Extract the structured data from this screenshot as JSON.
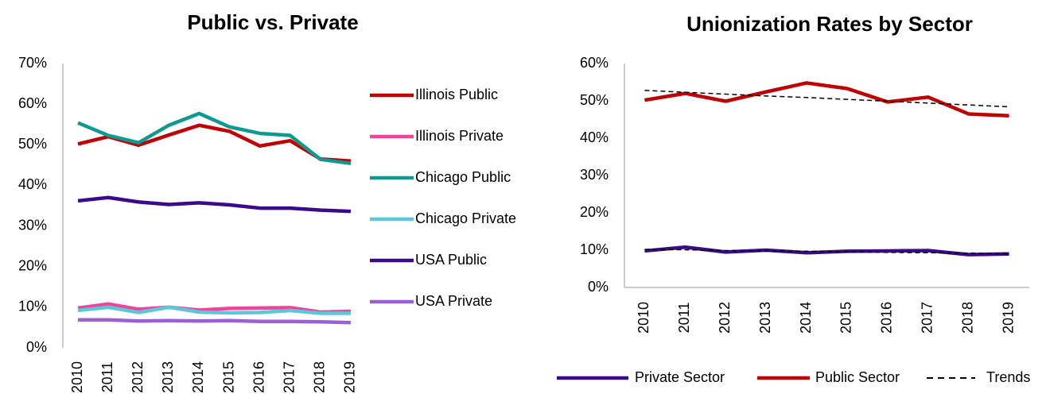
{
  "chart_data": [
    {
      "type": "line",
      "title": "Public vs. Private",
      "categories": [
        "2010",
        "2011",
        "2012",
        "2013",
        "2014",
        "2015",
        "2016",
        "2017",
        "2018",
        "2019"
      ],
      "ylim": [
        0,
        70
      ],
      "yticks": [
        {
          "value": 0,
          "label": "0%"
        },
        {
          "value": 10,
          "label": "10%"
        },
        {
          "value": 20,
          "label": "20%"
        },
        {
          "value": 30,
          "label": "30%"
        },
        {
          "value": 40,
          "label": "40%"
        },
        {
          "value": 50,
          "label": "50%"
        },
        {
          "value": 60,
          "label": "60%"
        },
        {
          "value": 70,
          "label": "70%"
        }
      ],
      "legend": "right",
      "series": [
        {
          "name": "Illinois Public",
          "color": "#c00000",
          "values": [
            50.2,
            52,
            49.9,
            52.4,
            54.8,
            53.3,
            49.7,
            51,
            46.5,
            46
          ]
        },
        {
          "name": "Illinois Private",
          "color": "#f0449a",
          "values": [
            9.8,
            10.8,
            9.5,
            10,
            9.3,
            9.7,
            9.8,
            9.9,
            8.8,
            9
          ]
        },
        {
          "name": "Chicago Public",
          "color": "#0e9a8f",
          "values": [
            55.4,
            52.3,
            50.5,
            54.8,
            57.7,
            54.4,
            52.8,
            52.3,
            46.4,
            45.4
          ]
        },
        {
          "name": "Chicago Private",
          "color": "#5bc8d8",
          "values": [
            9.2,
            10,
            8.7,
            10,
            8.8,
            8.6,
            8.7,
            9.2,
            8.5,
            8.5
          ]
        },
        {
          "name": "USA Public",
          "color": "#3b0a8c",
          "values": [
            36.2,
            37,
            35.9,
            35.3,
            35.7,
            35.2,
            34.4,
            34.4,
            33.9,
            33.6
          ]
        },
        {
          "name": "USA Private",
          "color": "#9b5fd6",
          "values": [
            6.9,
            6.9,
            6.6,
            6.7,
            6.6,
            6.7,
            6.5,
            6.5,
            6.4,
            6.2
          ]
        }
      ]
    },
    {
      "type": "line",
      "title": "Unionization Rates by Sector",
      "categories": [
        "2010",
        "2011",
        "2012",
        "2013",
        "2014",
        "2015",
        "2016",
        "2017",
        "2018",
        "2019"
      ],
      "ylim": [
        0,
        60
      ],
      "yticks": [
        {
          "value": 0,
          "label": "0%"
        },
        {
          "value": 10,
          "label": "10%"
        },
        {
          "value": 20,
          "label": "20%"
        },
        {
          "value": 30,
          "label": "30%"
        },
        {
          "value": 40,
          "label": "40%"
        },
        {
          "value": 50,
          "label": "50%"
        },
        {
          "value": 60,
          "label": "60%"
        }
      ],
      "legend": "bottom",
      "series": [
        {
          "name": "Private Sector",
          "color": "#3b0a8c",
          "values": [
            9.8,
            10.8,
            9.5,
            10,
            9.3,
            9.7,
            9.8,
            9.9,
            8.8,
            9
          ]
        },
        {
          "name": "Public Sector",
          "color": "#c00000",
          "values": [
            50.2,
            52,
            49.9,
            52.4,
            54.8,
            53.3,
            49.7,
            51,
            46.5,
            46
          ]
        }
      ],
      "trends": {
        "name": "Trends",
        "color": "#000000",
        "lines": [
          [
            52.8,
            52.3,
            51.8,
            51.3,
            50.9,
            50.4,
            49.9,
            49.4,
            48.9,
            48.4
          ],
          [
            10.2,
            10.1,
            9.9,
            9.8,
            9.7,
            9.6,
            9.4,
            9.3,
            9.2,
            9.0
          ]
        ]
      }
    }
  ]
}
